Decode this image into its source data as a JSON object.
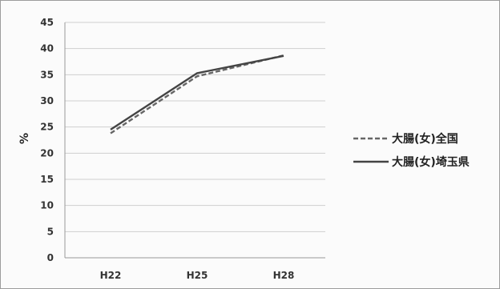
{
  "chart_data": {
    "type": "line",
    "categories": [
      "H22",
      "H25",
      "H28"
    ],
    "series": [
      {
        "name": "大腸(女)全国",
        "values": [
          23.8,
          34.7,
          38.7
        ],
        "style": "dashed",
        "color": "#666666"
      },
      {
        "name": "大腸(女)埼玉県",
        "values": [
          24.5,
          35.3,
          38.6
        ],
        "style": "solid",
        "color": "#444444"
      }
    ],
    "ylabel": "%",
    "ylim": [
      0,
      45
    ],
    "yticks": [
      0,
      5,
      10,
      15,
      20,
      25,
      30,
      35,
      40,
      45
    ],
    "grid": true,
    "legend": "right"
  }
}
